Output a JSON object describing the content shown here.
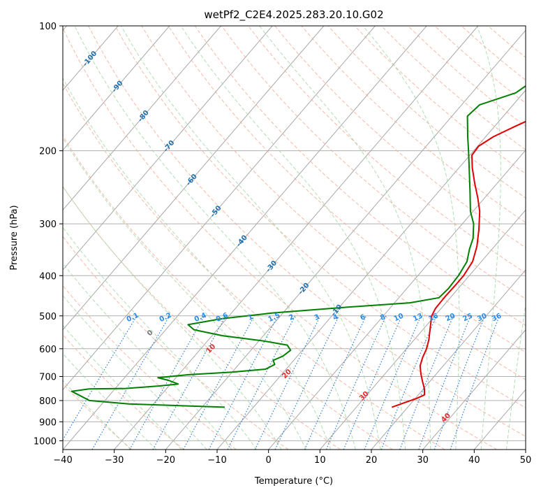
{
  "chart_data": {
    "type": "skew-t",
    "title": "wetPf2_C2E4.2025.283.20.10.G02",
    "xlabel": "Temperature (°C)",
    "ylabel": "Pressure (hPa)",
    "xlim": [
      -40,
      50
    ],
    "ylim": [
      1050,
      100
    ],
    "x_ticks": [
      -40,
      -30,
      -20,
      -10,
      0,
      10,
      20,
      30,
      40,
      50
    ],
    "y_ticks": [
      100,
      200,
      300,
      400,
      500,
      600,
      700,
      800,
      900,
      1000
    ],
    "y_scale": "log",
    "grid": true,
    "isotherm_labels": [
      "-100",
      "-90",
      "-80",
      "-70",
      "-60",
      "-50",
      "-40",
      "-30",
      "-20",
      "-10"
    ],
    "mixing_ratio_labels": [
      "0.1",
      "0.2",
      "0.4",
      "0.6",
      "1",
      "1.5",
      "2",
      "3",
      "4",
      "6",
      "8",
      "10",
      "13",
      "16",
      "20",
      "25",
      "30",
      "36"
    ],
    "dry_adiabat_labels": [
      "0",
      "10",
      "20",
      "30",
      "40"
    ],
    "series": [
      {
        "name": "temperature",
        "color": "#e00000",
        "points": [
          [
            16.9,
            830
          ],
          [
            18.6,
            810
          ],
          [
            20.3,
            790
          ],
          [
            21.2,
            775
          ],
          [
            20.2,
            750
          ],
          [
            18.6,
            720
          ],
          [
            17.0,
            690
          ],
          [
            15.5,
            660
          ],
          [
            14.6,
            630
          ],
          [
            13.9,
            600
          ],
          [
            12.8,
            570
          ],
          [
            11.4,
            540
          ],
          [
            9.4,
            500
          ],
          [
            8.9,
            480
          ],
          [
            8.8,
            450
          ],
          [
            8.9,
            420
          ],
          [
            8.9,
            400
          ],
          [
            8.3,
            370
          ],
          [
            6.6,
            340
          ],
          [
            4.2,
            310
          ],
          [
            1.3,
            280
          ],
          [
            -1.3,
            260
          ],
          [
            -4.3,
            240
          ],
          [
            -7.4,
            220
          ],
          [
            -9.6,
            205
          ],
          [
            -9.8,
            195
          ],
          [
            -8.5,
            185
          ],
          [
            -6.1,
            175
          ],
          [
            -4.2,
            168
          ],
          [
            -1.6,
            160
          ],
          [
            -0.8,
            150
          ],
          [
            -1.3,
            140
          ],
          [
            -1.7,
            130
          ],
          [
            -1.8,
            120
          ],
          [
            -1.1,
            110
          ],
          [
            0.4,
            100
          ]
        ]
      },
      {
        "name": "dewpoint",
        "color": "#008000",
        "points": [
          [
            -15.6,
            830
          ],
          [
            -34.8,
            815
          ],
          [
            -43.0,
            800
          ],
          [
            -48.0,
            760
          ],
          [
            -45.0,
            750
          ],
          [
            -38.0,
            748
          ],
          [
            -32.0,
            738
          ],
          [
            -28.5,
            730
          ],
          [
            -31.0,
            715
          ],
          [
            -33.5,
            705
          ],
          [
            -28.0,
            693
          ],
          [
            -20.0,
            683
          ],
          [
            -14.0,
            672
          ],
          [
            -13.0,
            655
          ],
          [
            -14.0,
            640
          ],
          [
            -12.8,
            625
          ],
          [
            -12.3,
            605
          ],
          [
            -13.8,
            588
          ],
          [
            -19.0,
            575
          ],
          [
            -28.0,
            558
          ],
          [
            -34.5,
            540
          ],
          [
            -36.5,
            525
          ],
          [
            -31.0,
            508
          ],
          [
            -22.0,
            492
          ],
          [
            -10.0,
            478
          ],
          [
            3.0,
            465
          ],
          [
            7.8,
            452
          ],
          [
            8.1,
            430
          ],
          [
            7.9,
            400
          ],
          [
            7.2,
            370
          ],
          [
            5.6,
            345
          ],
          [
            4.5,
            325
          ],
          [
            2.2,
            300
          ],
          [
            -0.5,
            280
          ],
          [
            -4.0,
            250
          ],
          [
            -8.0,
            220
          ],
          [
            -11.0,
            200
          ],
          [
            -13.5,
            185
          ],
          [
            -17.0,
            165
          ],
          [
            -16.5,
            155
          ],
          [
            -11.5,
            145
          ],
          [
            -10.0,
            135
          ],
          [
            -9.5,
            125
          ],
          [
            -8.5,
            115
          ],
          [
            -5.0,
            105
          ],
          [
            -2.5,
            100
          ]
        ]
      }
    ]
  }
}
